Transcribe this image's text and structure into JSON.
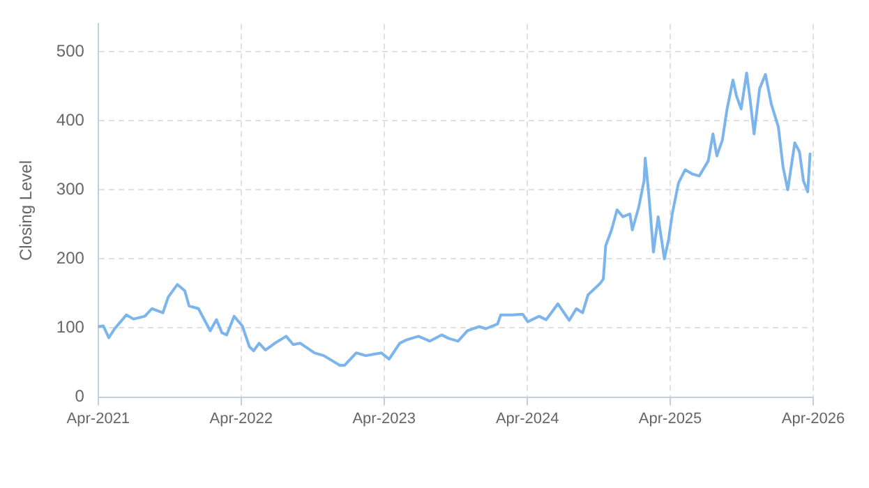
{
  "chart_data": {
    "type": "line",
    "ylabel": "Closing Level",
    "xlim": [
      "2021-04-01",
      "2026-04-01"
    ],
    "xticks": [
      {
        "value": "2021-04-01",
        "label": "Apr-2021"
      },
      {
        "value": "2022-04-01",
        "label": "Apr-2022"
      },
      {
        "value": "2023-04-01",
        "label": "Apr-2023"
      },
      {
        "value": "2024-04-01",
        "label": "Apr-2024"
      },
      {
        "value": "2025-04-01",
        "label": "Apr-2025"
      },
      {
        "value": "2026-04-01",
        "label": "Apr-2026"
      }
    ],
    "ylim": [
      0,
      540
    ],
    "yticks": [
      0,
      100,
      200,
      300,
      400,
      500
    ],
    "grid": true,
    "line_style": "solid",
    "marker": "none",
    "x": [
      "2021-04-01",
      "2021-04-14",
      "2021-04-28",
      "2021-05-13",
      "2021-06-12",
      "2021-06-30",
      "2021-07-29",
      "2021-08-16",
      "2021-09-13",
      "2021-09-27",
      "2021-10-20",
      "2021-11-08",
      "2021-11-19",
      "2021-12-13",
      "2022-01-12",
      "2022-01-28",
      "2022-02-11",
      "2022-02-23",
      "2022-03-14",
      "2022-04-04",
      "2022-04-22",
      "2022-05-03",
      "2022-05-17",
      "2022-06-02",
      "2022-06-26",
      "2022-07-25",
      "2022-08-12",
      "2022-08-30",
      "2022-10-05",
      "2022-10-29",
      "2022-12-09",
      "2022-12-21",
      "2023-01-20",
      "2023-02-13",
      "2023-03-25",
      "2023-04-14",
      "2023-05-11",
      "2023-05-29",
      "2023-06-28",
      "2023-07-27",
      "2023-08-26",
      "2023-09-13",
      "2023-10-07",
      "2023-10-31",
      "2023-11-30",
      "2023-12-17",
      "2024-01-16",
      "2024-01-24",
      "2024-02-21",
      "2024-03-20",
      "2024-04-02",
      "2024-05-01",
      "2024-05-19",
      "2024-06-18",
      "2024-07-17",
      "2024-08-04",
      "2024-08-20",
      "2024-09-03",
      "2024-10-03",
      "2024-10-12",
      "2024-10-18",
      "2024-11-02",
      "2024-11-16",
      "2024-12-01",
      "2024-12-19",
      "2024-12-25",
      "2025-01-10",
      "2025-01-24",
      "2025-01-27",
      "2025-02-05",
      "2025-02-17",
      "2025-03-01",
      "2025-03-17",
      "2025-03-28",
      "2025-04-06",
      "2025-04-22",
      "2025-05-09",
      "2025-05-27",
      "2025-06-14",
      "2025-07-07",
      "2025-07-19",
      "2025-07-29",
      "2025-08-12",
      "2025-08-24",
      "2025-09-08",
      "2025-09-17",
      "2025-09-29",
      "2025-10-13",
      "2025-10-22",
      "2025-11-01",
      "2025-11-15",
      "2025-11-30",
      "2025-12-15",
      "2026-01-02",
      "2026-01-14",
      "2026-01-26",
      "2026-02-13",
      "2026-02-25",
      "2026-03-07",
      "2026-03-18",
      "2026-03-24"
    ],
    "series": [
      {
        "color": "#7cb5ec",
        "values": [
          102,
          103,
          86,
          99,
          119,
          113,
          117,
          128,
          122,
          145,
          163,
          154,
          132,
          128,
          96,
          112,
          93,
          90,
          117,
          103,
          73,
          67,
          78,
          68,
          78,
          88,
          76,
          78,
          64,
          60,
          46,
          46,
          64,
          60,
          64,
          55,
          78,
          83,
          88,
          81,
          90,
          85,
          81,
          96,
          102,
          99,
          106,
          119,
          119,
          120,
          109,
          117,
          112,
          135,
          111,
          128,
          122,
          148,
          164,
          171,
          219,
          242,
          271,
          261,
          265,
          242,
          274,
          313,
          346,
          294,
          210,
          261,
          200,
          229,
          265,
          310,
          329,
          323,
          320,
          342,
          381,
          349,
          372,
          417,
          459,
          436,
          417,
          469,
          430,
          381,
          446,
          467,
          424,
          391,
          333,
          300,
          368,
          355,
          313,
          297,
          352
        ]
      }
    ]
  }
}
